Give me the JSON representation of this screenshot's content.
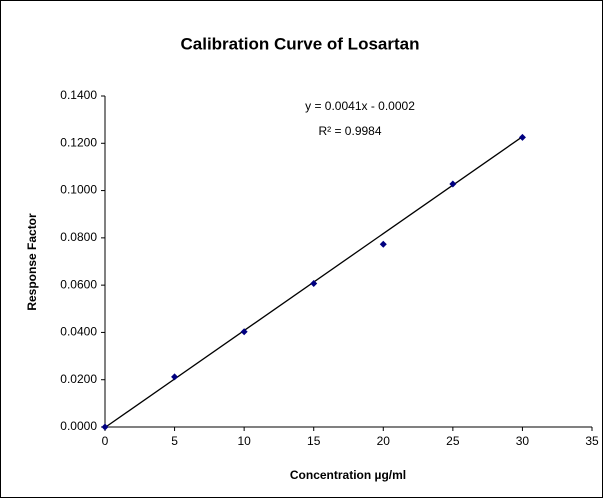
{
  "chart_data": {
    "type": "scatter",
    "title": "Calibration Curve of Losartan",
    "x_label": "Concentration µg/ml",
    "y_label": "Response Factor",
    "x": [
      0,
      5,
      10,
      15,
      20,
      25,
      30
    ],
    "values": [
      0,
      0.0212,
      0.0403,
      0.0607,
      0.0773,
      0.1028,
      0.1225
    ],
    "color": "#000080",
    "xlim": [
      0,
      35
    ],
    "xticks": [
      0,
      5,
      10,
      15,
      20,
      25,
      30,
      35
    ],
    "ylim": [
      0,
      0.14
    ],
    "yticks": [
      {
        "value": 0,
        "label": "0.0000"
      },
      {
        "value": 0.02,
        "label": "0.0200"
      },
      {
        "value": 0.04,
        "label": "0.0400"
      },
      {
        "value": 0.06,
        "label": "0.0600"
      },
      {
        "value": 0.08,
        "label": "0.0800"
      },
      {
        "value": 0.1,
        "label": "0.1000"
      },
      {
        "value": 0.12,
        "label": "0.1200"
      },
      {
        "value": 0.14,
        "label": "0.1400"
      }
    ],
    "grid": false,
    "trendline": {
      "equation": "y = 0.0041x - 0.0002",
      "r_squared": "R² = 0.9984",
      "slope": 0.0041,
      "intercept": -0.0002,
      "color": "#000000"
    }
  }
}
